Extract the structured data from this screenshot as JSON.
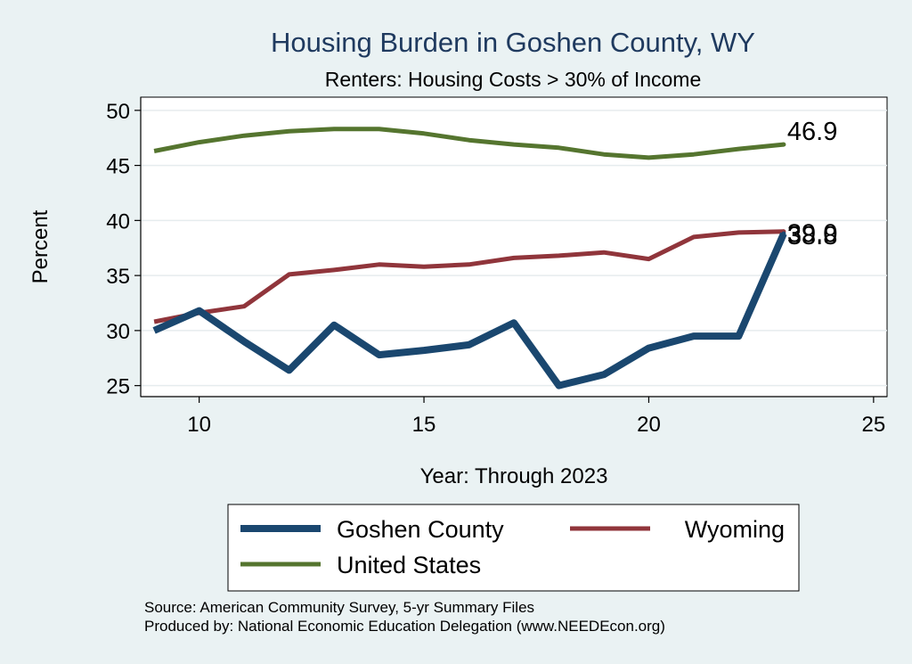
{
  "chart_data": {
    "type": "line",
    "title": "Housing Burden in Goshen County, WY",
    "subtitle": "Renters: Housing Costs > 30% of Income",
    "xlabel": "Year: Through 2023",
    "ylabel": "Percent",
    "xlim": [
      8.7,
      25.3
    ],
    "ylim": [
      24,
      51.2
    ],
    "xticks": [
      10,
      15,
      20,
      25
    ],
    "yticks": [
      25,
      30,
      35,
      40,
      45,
      50
    ],
    "grid": true,
    "legend_position": "bottom",
    "series": [
      {
        "name": "Goshen County",
        "color": "#1a476f",
        "width": 8,
        "x": [
          9,
          10,
          11,
          12,
          13,
          14,
          15,
          16,
          17,
          18,
          19,
          20,
          21,
          22,
          23
        ],
        "values": [
          30.0,
          31.8,
          29.0,
          26.4,
          30.5,
          27.8,
          28.2,
          28.7,
          30.7,
          25.0,
          26.0,
          28.4,
          29.5,
          29.5,
          38.8
        ],
        "end_label": "38.8"
      },
      {
        "name": "Wyoming",
        "color": "#90353b",
        "width": 5,
        "x": [
          9,
          10,
          11,
          12,
          13,
          14,
          15,
          16,
          17,
          18,
          19,
          20,
          21,
          22,
          23
        ],
        "values": [
          30.8,
          31.6,
          32.2,
          35.1,
          35.5,
          36.0,
          35.8,
          36.0,
          36.6,
          36.8,
          37.1,
          36.5,
          38.5,
          38.9,
          39.0
        ],
        "end_label": "39.0"
      },
      {
        "name": "United States",
        "color": "#55752f",
        "width": 5,
        "x": [
          9,
          10,
          11,
          12,
          13,
          14,
          15,
          16,
          17,
          18,
          19,
          20,
          21,
          22,
          23
        ],
        "values": [
          46.3,
          47.1,
          47.7,
          48.1,
          48.3,
          48.3,
          47.9,
          47.3,
          46.9,
          46.6,
          46.0,
          45.7,
          46.0,
          46.5,
          46.9
        ],
        "end_label": "46.9"
      }
    ]
  },
  "source": {
    "line1": "Source: American Community Survey, 5-yr Summary Files",
    "line2": "Produced by: National Economic Education Delegation (www.NEEDEcon.org)"
  }
}
